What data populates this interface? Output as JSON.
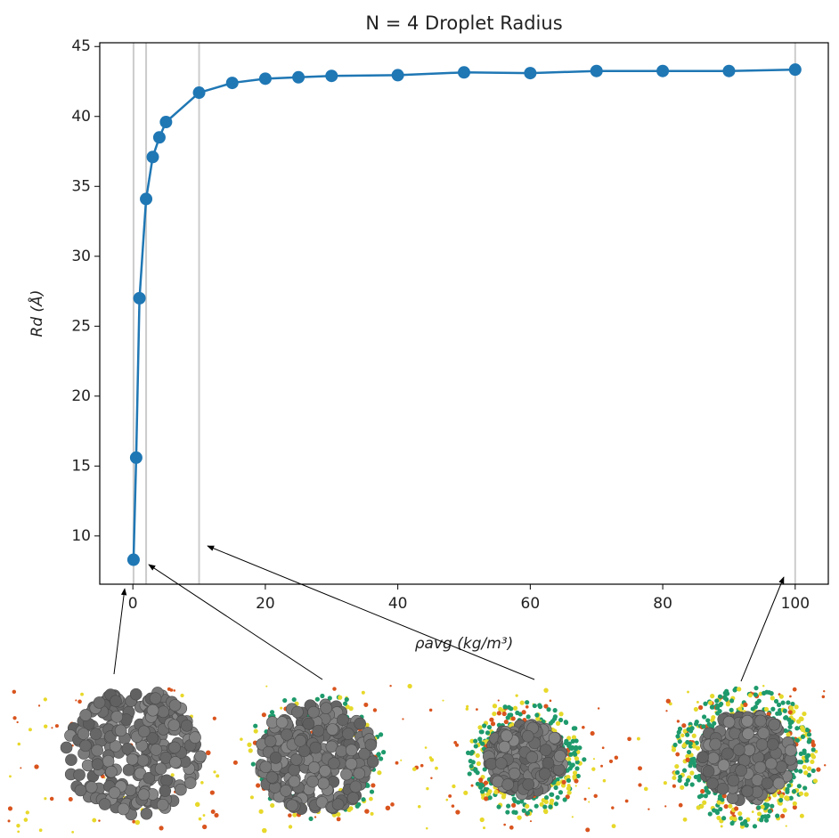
{
  "chart_data": {
    "type": "line",
    "title": "N = 4 Droplet Radius",
    "x_label": "ρavg (kg/m³)",
    "y_label": "Rd (Å)",
    "x": [
      0.1,
      0.5,
      1,
      2,
      3,
      4,
      5,
      10,
      15,
      20,
      25,
      30,
      40,
      50,
      60,
      70,
      80,
      90,
      100
    ],
    "series": [
      {
        "name": "Rd",
        "color": "#1f77b4",
        "values": [
          8.3,
          15.6,
          27.0,
          34.1,
          37.1,
          38.5,
          39.6,
          41.7,
          42.4,
          42.7,
          42.8,
          42.9,
          42.95,
          43.15,
          43.1,
          43.25,
          43.25,
          43.25,
          43.35
        ]
      }
    ],
    "xlim": [
      -5,
      105
    ],
    "ylim": [
      6.55,
      45.27
    ],
    "xticks": [
      0,
      20,
      40,
      60,
      80,
      100
    ],
    "yticks": [
      10,
      15,
      20,
      25,
      30,
      35,
      40,
      45
    ],
    "vlines": [
      0.1,
      2,
      10,
      100
    ],
    "vline_color": "#cccccc",
    "grid": false
  }
}
